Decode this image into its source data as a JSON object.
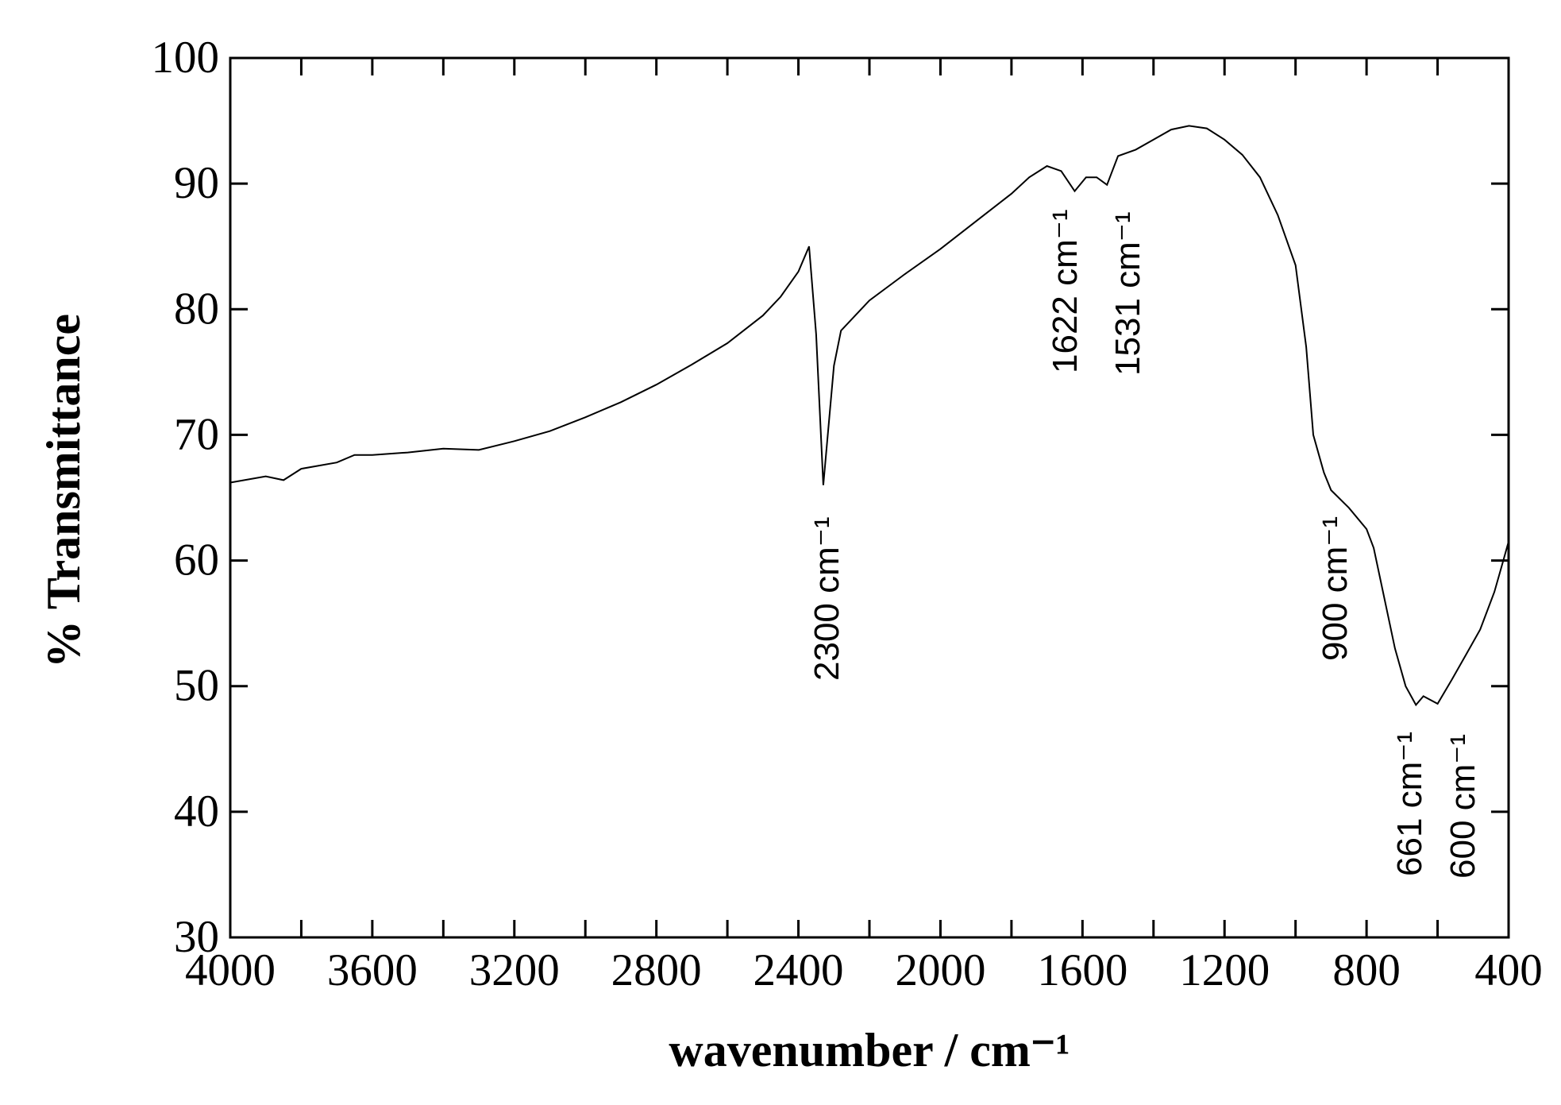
{
  "chart_data": {
    "type": "line",
    "x_label": "wavenumber / cm⁻¹",
    "y_label": "% Transmittance",
    "xlim": [
      4000,
      400
    ],
    "ylim": [
      30,
      100
    ],
    "xticks": [
      4000,
      3600,
      3200,
      2800,
      2400,
      2000,
      1600,
      1200,
      800,
      400
    ],
    "xminor_ticks": [
      3800,
      3400,
      3000,
      2600,
      2200,
      1800,
      1400,
      1000,
      600
    ],
    "yticks": [
      30,
      40,
      50,
      60,
      70,
      80,
      90,
      100
    ],
    "grid": false,
    "series": [
      {
        "color": "#000000",
        "x": [
          4000,
          3900,
          3850,
          3800,
          3700,
          3650,
          3600,
          3500,
          3400,
          3300,
          3200,
          3100,
          3000,
          2900,
          2800,
          2700,
          2600,
          2500,
          2450,
          2400,
          2370,
          2350,
          2330,
          2300,
          2280,
          2200,
          2100,
          2000,
          1900,
          1800,
          1750,
          1700,
          1660,
          1622,
          1590,
          1560,
          1531,
          1500,
          1450,
          1400,
          1350,
          1300,
          1250,
          1200,
          1150,
          1100,
          1050,
          1000,
          970,
          950,
          920,
          900,
          850,
          800,
          780,
          750,
          720,
          690,
          661,
          640,
          600,
          560,
          520,
          480,
          440,
          420,
          400
        ],
        "values": [
          66.2,
          66.7,
          66.4,
          67.3,
          67.8,
          68.4,
          68.4,
          68.6,
          68.9,
          68.8,
          69.5,
          70.3,
          71.4,
          72.6,
          74.0,
          75.6,
          77.3,
          79.5,
          81.0,
          83.0,
          85.0,
          78.0,
          66.0,
          75.5,
          78.3,
          80.7,
          82.8,
          84.8,
          87.0,
          89.2,
          90.5,
          91.4,
          91.0,
          89.4,
          90.5,
          90.5,
          89.9,
          92.2,
          92.7,
          93.5,
          94.3,
          94.6,
          94.4,
          93.5,
          92.3,
          90.5,
          87.5,
          83.5,
          77.0,
          70.0,
          67.0,
          65.6,
          64.2,
          62.5,
          61.0,
          57.0,
          53.0,
          50.0,
          48.5,
          49.2,
          48.6,
          50.5,
          52.5,
          54.5,
          57.5,
          59.5,
          61.5
        ]
      }
    ],
    "annotations": [
      "2300 cm⁻¹",
      "1622 cm⁻¹",
      "1531 cm⁻¹",
      "900 cm⁻¹",
      "661 cm⁻¹",
      "600 cm⁻¹"
    ]
  }
}
